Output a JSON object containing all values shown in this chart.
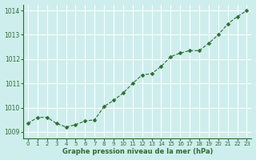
{
  "x": [
    0,
    1,
    2,
    3,
    4,
    5,
    6,
    7,
    8,
    9,
    10,
    11,
    12,
    13,
    14,
    15,
    16,
    17,
    18,
    19,
    20,
    21,
    22,
    23
  ],
  "y": [
    1009.35,
    1009.6,
    1009.6,
    1009.35,
    1009.2,
    1009.3,
    1009.45,
    1009.5,
    1010.05,
    1010.3,
    1010.6,
    1011.0,
    1011.35,
    1011.4,
    1011.7,
    1012.1,
    1012.25,
    1012.35,
    1012.35,
    1012.65,
    1013.0,
    1013.45,
    1013.75,
    1014.0
  ],
  "line_color": "#2d6e2d",
  "marker_color": "#2d6e2d",
  "bg_color": "#ceeeed",
  "grid_color": "#ffffff",
  "xlabel": "Graphe pression niveau de la mer (hPa)",
  "xlabel_color": "#2d6e2d",
  "tick_color": "#2d6e2d",
  "spine_color": "#2d6e2d",
  "ylim": [
    1008.75,
    1014.25
  ],
  "yticks": [
    1009,
    1010,
    1011,
    1012,
    1013,
    1014
  ],
  "xlim": [
    -0.5,
    23.5
  ],
  "xticks": [
    0,
    1,
    2,
    3,
    4,
    5,
    6,
    7,
    8,
    9,
    10,
    11,
    12,
    13,
    14,
    15,
    16,
    17,
    18,
    19,
    20,
    21,
    22,
    23
  ],
  "figsize": [
    3.2,
    2.0
  ],
  "dpi": 100
}
